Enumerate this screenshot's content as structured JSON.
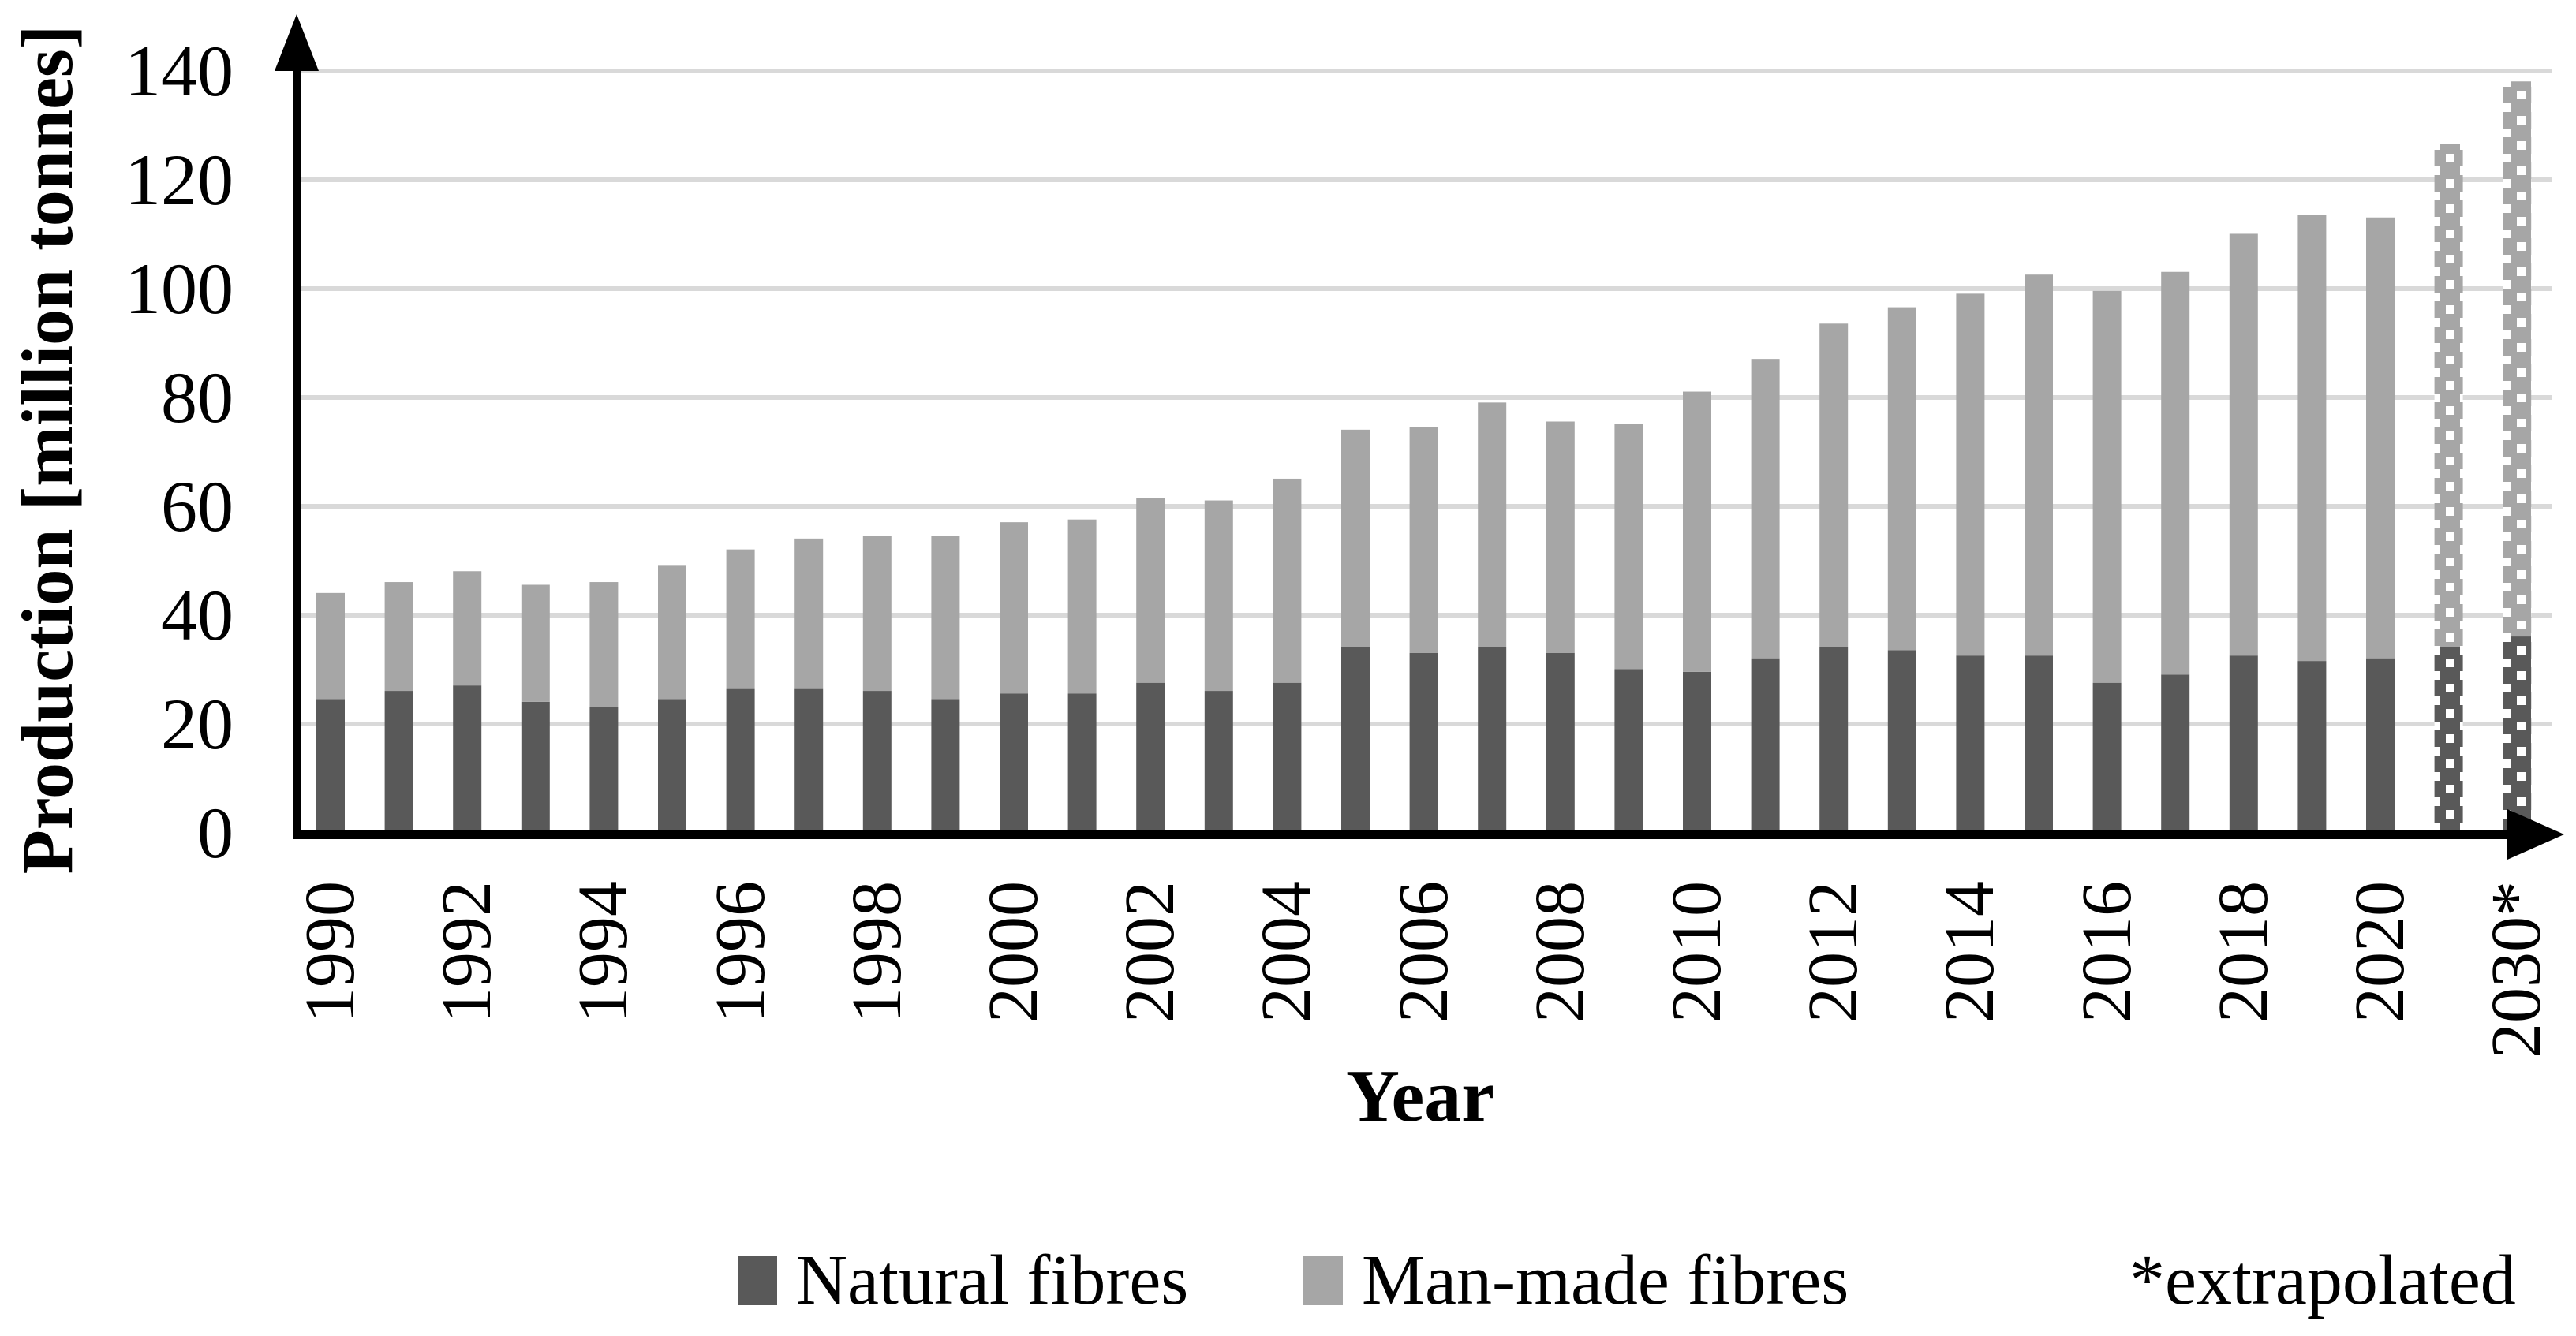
{
  "y_axis": {
    "label": "Production [million tonnes]",
    "ticks": [
      "0",
      "20",
      "40",
      "60",
      "80",
      "100",
      "120",
      "140"
    ]
  },
  "x_axis": {
    "label": "Year"
  },
  "legend": {
    "items": [
      {
        "label": "Natural fibres",
        "color": "#595959"
      },
      {
        "label": "Man-made fibres",
        "color": "#a6a6a6"
      }
    ]
  },
  "note": "*extrapolated",
  "colors": {
    "natural": "#595959",
    "manmade": "#a6a6a6",
    "gridline": "#d9d9d9",
    "axis": "#000000",
    "pattern_dot": "#ffffff"
  },
  "chart_data": {
    "type": "bar",
    "stacked": true,
    "title": "",
    "xlabel": "Year",
    "ylabel": "Production [million tonnes]",
    "ylim": [
      0,
      140
    ],
    "ytick_step": 20,
    "grid": "horizontal",
    "legend_position": "bottom",
    "categories": [
      "1990",
      "1991",
      "1992",
      "1993",
      "1994",
      "1995",
      "1996",
      "1997",
      "1998",
      "1999",
      "2000",
      "2001",
      "2002",
      "2003",
      "2004",
      "2005",
      "2006",
      "2007",
      "2008",
      "2009",
      "2010",
      "2011",
      "2012",
      "2013",
      "2014",
      "2015",
      "2016",
      "2017",
      "2018",
      "2019",
      "2020",
      "",
      "2030*"
    ],
    "series": [
      {
        "name": "Natural fibres",
        "color": "#595959",
        "values": [
          24,
          25.5,
          26.5,
          23.5,
          22.5,
          24,
          26,
          26,
          25.5,
          24,
          25,
          25,
          27,
          25.5,
          27,
          33.5,
          32.5,
          33.5,
          32.5,
          29.5,
          29,
          31.5,
          33.5,
          33,
          32,
          32,
          27,
          28.5,
          32,
          31,
          31.5,
          33.5,
          35.5
        ]
      },
      {
        "name": "Man-made fibres",
        "color": "#a6a6a6",
        "values": [
          19.5,
          20,
          21,
          21.5,
          23,
          24.5,
          25.5,
          27.5,
          28.5,
          30,
          31.5,
          32,
          34,
          35,
          37.5,
          40,
          41.5,
          45,
          42.5,
          45,
          51.5,
          55,
          59.5,
          63,
          66.5,
          70,
          72,
          74,
          77.5,
          82,
          81,
          92.5,
          102
        ]
      }
    ],
    "totals": [
      43.5,
      45.5,
      47.5,
      45,
      45.5,
      48.5,
      51.5,
      53.5,
      54,
      54,
      56.5,
      57,
      61,
      60.5,
      64.5,
      73.5,
      74,
      78.5,
      75,
      74.5,
      80.5,
      86.5,
      93,
      96,
      98.5,
      102,
      99,
      102.5,
      109.5,
      113,
      112.5,
      126,
      137.5
    ],
    "extrapolated_bar_indices": [
      31,
      32
    ],
    "extrapolated_style": "white dotted pattern fill",
    "x_tick_labels_shown": [
      "1990",
      "1992",
      "1994",
      "1996",
      "1998",
      "2000",
      "2002",
      "2004",
      "2006",
      "2008",
      "2010",
      "2012",
      "2014",
      "2016",
      "2018",
      "2020",
      "2030*"
    ],
    "x_tick_bar_indices": [
      0,
      2,
      4,
      6,
      8,
      10,
      12,
      14,
      16,
      18,
      20,
      22,
      24,
      26,
      28,
      30,
      32
    ],
    "note": "*extrapolated"
  }
}
